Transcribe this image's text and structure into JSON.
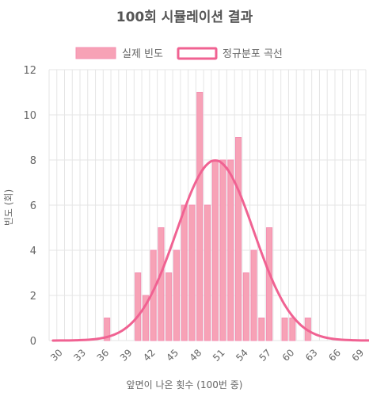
{
  "chart_data": {
    "type": "bar",
    "title": "100회 시뮬레이션 결과",
    "xlabel": "앞면이 나온 횟수 (100번 중)",
    "ylabel": "빈도 (회)",
    "ylim": [
      0,
      12
    ],
    "yticks": [
      0,
      2,
      4,
      6,
      8,
      10,
      12
    ],
    "xlim": [
      29,
      70
    ],
    "xticks": [
      30,
      33,
      36,
      39,
      42,
      45,
      48,
      51,
      54,
      57,
      60,
      63,
      66,
      69
    ],
    "grid": true,
    "legend_position": "top",
    "series": [
      {
        "name": "실제 빈도",
        "type": "bar",
        "color": "#f7a2b6",
        "border_color": "#f48fb1",
        "x": [
          36,
          40,
          41,
          42,
          43,
          44,
          45,
          46,
          47,
          48,
          49,
          50,
          51,
          52,
          53,
          54,
          55,
          56,
          57,
          59,
          60,
          62
        ],
        "values": [
          1,
          3,
          2,
          4,
          5,
          3,
          4,
          6,
          6,
          11,
          6,
          8,
          8,
          8,
          9,
          3,
          4,
          1,
          5,
          1,
          1,
          1
        ]
      },
      {
        "name": "정규분포 곡선",
        "type": "line",
        "color": "#f06292",
        "mean": 50,
        "std": 5,
        "scale": 100
      }
    ]
  }
}
